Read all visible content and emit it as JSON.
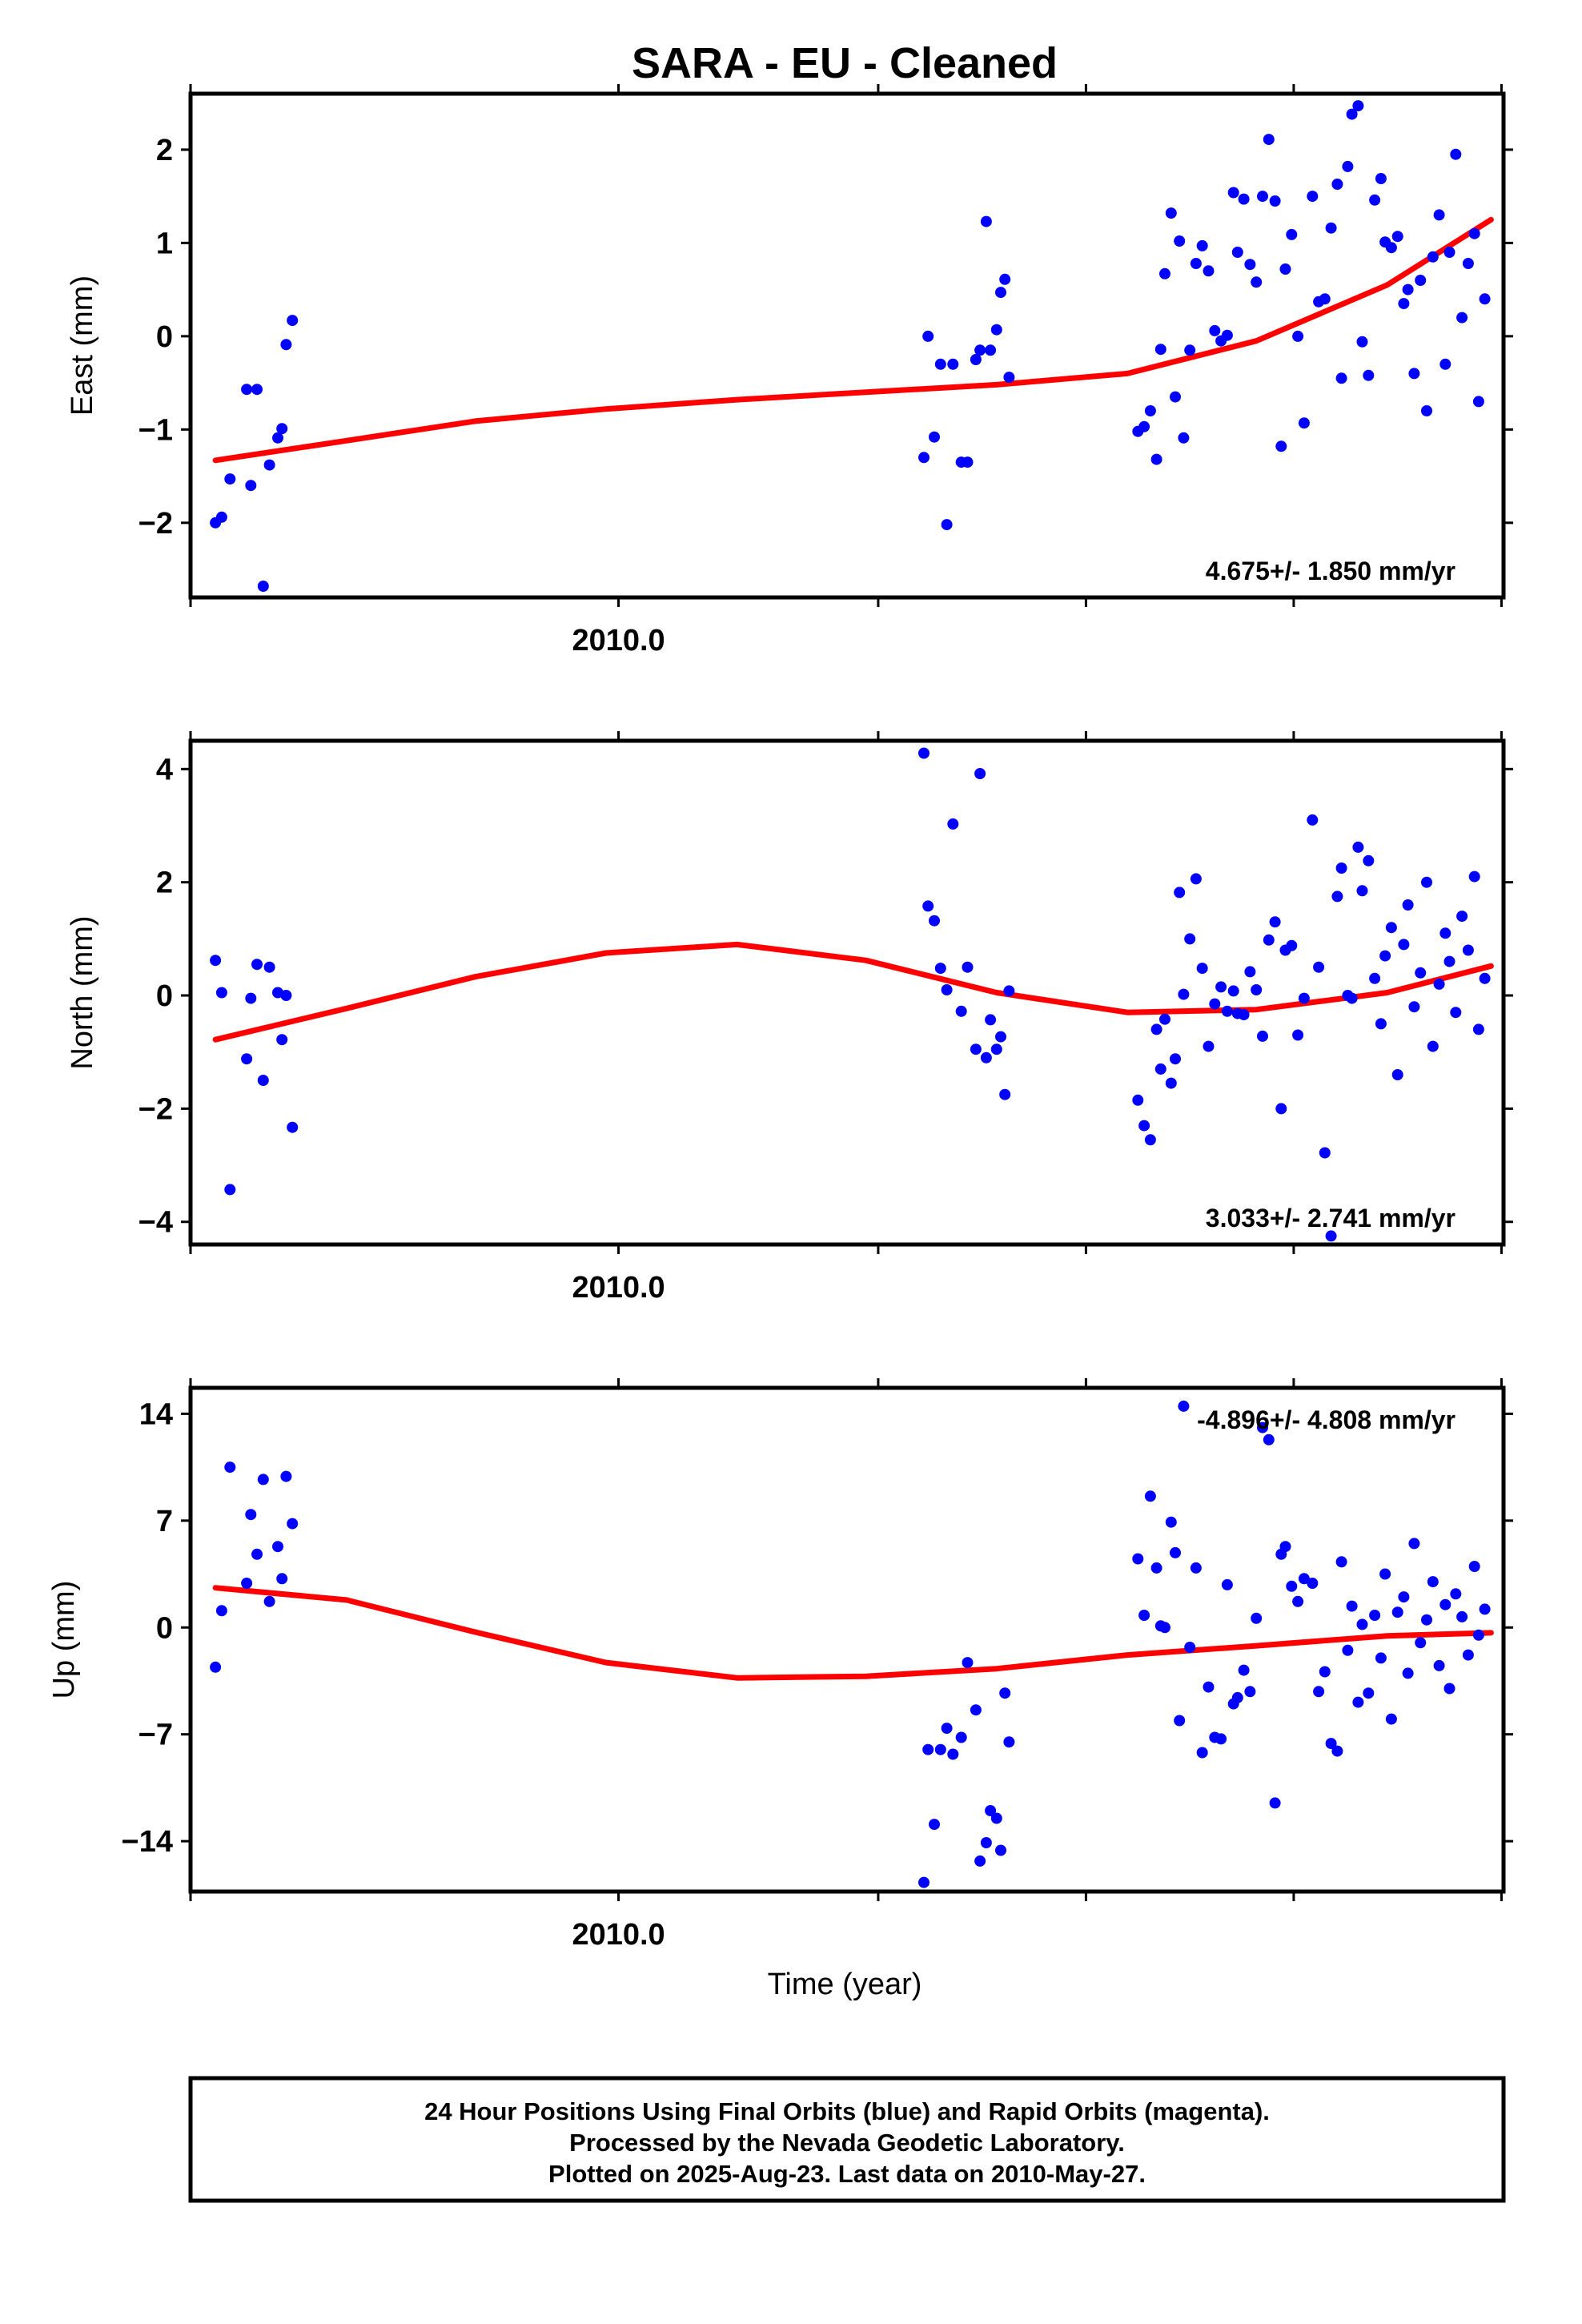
{
  "title": "SARA  - EU - Cleaned",
  "xlabel": "Time (year)",
  "footer": [
    "24 Hour Positions Using Final Orbits (blue) and Rapid Orbits (magenta).",
    "Processed by the Nevada Geodetic Laboratory.",
    "Plotted on 2025-Aug-23. Last data on 2010-May-27."
  ],
  "colors": {
    "points": "#0000ff",
    "fit": "#ff0000",
    "frame": "#000000"
  },
  "chart_data": [
    {
      "type": "scatter",
      "ylabel": "East (mm)",
      "x_tick_label": "2010.0",
      "x_tick_label_value": 2010.0,
      "xlim": [
        2009.794,
        2010.426
      ],
      "ylim": [
        -2.8,
        2.6
      ],
      "yticks": [
        -2,
        -1,
        0,
        1,
        2
      ],
      "yticklabels": [
        "−2",
        "−1",
        "0",
        "1",
        "2"
      ],
      "rate": "4.675+/- 1.850 mm/yr",
      "rate_position": "bottom-right",
      "fit_line": {
        "x": [
          2009.806,
          2009.869,
          2009.931,
          2009.994,
          2010.057,
          2010.119,
          2010.182,
          2010.245,
          2010.307,
          2010.37,
          2010.42
        ],
        "y": [
          -1.33,
          -1.12,
          -0.91,
          -0.78,
          -0.68,
          -0.6,
          -0.52,
          -0.4,
          -0.05,
          0.55,
          1.25
        ]
      },
      "points": {
        "x": [
          2009.806,
          2009.809,
          2009.813,
          2009.821,
          2009.823,
          2009.826,
          2009.829,
          2009.832,
          2009.836,
          2009.838,
          2009.84,
          2009.843,
          2010.147,
          2010.149,
          2010.152,
          2010.155,
          2010.158,
          2010.161,
          2010.165,
          2010.168,
          2010.172,
          2010.174,
          2010.177,
          2010.179,
          2010.182,
          2010.184,
          2010.186,
          2010.188,
          2010.25,
          2010.253,
          2010.256,
          2010.259,
          2010.261,
          2010.263,
          2010.266,
          2010.268,
          2010.27,
          2010.272,
          2010.275,
          2010.278,
          2010.281,
          2010.284,
          2010.287,
          2010.29,
          2010.293,
          2010.296,
          2010.298,
          2010.301,
          2010.304,
          2010.307,
          2010.31,
          2010.313,
          2010.316,
          2010.319,
          2010.321,
          2010.324,
          2010.327,
          2010.33,
          2010.334,
          2010.337,
          2010.34,
          2010.343,
          2010.346,
          2010.348,
          2010.351,
          2010.353,
          2010.356,
          2010.358,
          2010.361,
          2010.364,
          2010.367,
          2010.369,
          2010.372,
          2010.375,
          2010.378,
          2010.38,
          2010.383,
          2010.386,
          2010.389,
          2010.392,
          2010.395,
          2010.398,
          2010.4,
          2010.403,
          2010.406,
          2010.409,
          2010.412,
          2010.414,
          2010.417
        ],
        "y": [
          -2.0,
          -1.94,
          -1.53,
          -0.57,
          -1.6,
          -0.57,
          -2.68,
          -1.38,
          -1.09,
          -0.99,
          -0.09,
          0.17,
          -1.3,
          0.0,
          -1.08,
          -0.3,
          -2.02,
          -0.3,
          -1.35,
          -1.35,
          -0.25,
          -0.15,
          1.23,
          -0.15,
          0.07,
          0.47,
          0.61,
          -0.44,
          -1.02,
          -0.97,
          -0.8,
          -1.32,
          -0.14,
          0.67,
          1.32,
          -0.65,
          1.02,
          -1.09,
          -0.15,
          0.78,
          0.97,
          0.7,
          0.06,
          -0.05,
          0.01,
          1.54,
          0.9,
          1.47,
          0.77,
          0.58,
          1.5,
          2.11,
          1.45,
          -1.18,
          0.72,
          1.09,
          0.0,
          -0.93,
          1.5,
          0.37,
          0.4,
          1.16,
          1.63,
          -0.45,
          1.82,
          2.38,
          2.47,
          -0.06,
          -0.42,
          1.46,
          1.69,
          1.01,
          0.95,
          1.07,
          0.35,
          0.5,
          -0.4,
          0.6,
          -0.8,
          0.85,
          1.3,
          -0.3,
          0.9,
          1.95,
          0.2,
          0.78,
          1.1,
          -0.7,
          0.4
        ]
      }
    },
    {
      "type": "scatter",
      "ylabel": "North (mm)",
      "x_tick_label": "2010.0",
      "x_tick_label_value": 2010.0,
      "xlim": [
        2009.794,
        2010.426
      ],
      "ylim": [
        -4.4,
        4.5
      ],
      "yticks": [
        -4,
        -2,
        0,
        2,
        4
      ],
      "yticklabels": [
        "−4",
        "−2",
        "0",
        "2",
        "4"
      ],
      "rate": "3.033+/- 2.741 mm/yr",
      "rate_position": "bottom-right",
      "fit_line": {
        "x": [
          2009.806,
          2009.869,
          2009.931,
          2009.994,
          2010.057,
          2010.119,
          2010.182,
          2010.245,
          2010.307,
          2010.37,
          2010.42
        ],
        "y": [
          -0.78,
          -0.23,
          0.33,
          0.75,
          0.9,
          0.62,
          0.05,
          -0.3,
          -0.25,
          0.05,
          0.52
        ]
      },
      "points": {
        "x": [
          2009.806,
          2009.809,
          2009.813,
          2009.821,
          2009.823,
          2009.826,
          2009.829,
          2009.832,
          2009.836,
          2009.838,
          2009.84,
          2009.843,
          2010.147,
          2010.149,
          2010.152,
          2010.155,
          2010.158,
          2010.161,
          2010.165,
          2010.168,
          2010.172,
          2010.174,
          2010.177,
          2010.179,
          2010.182,
          2010.184,
          2010.186,
          2010.188,
          2010.25,
          2010.253,
          2010.256,
          2010.259,
          2010.261,
          2010.263,
          2010.266,
          2010.268,
          2010.27,
          2010.272,
          2010.275,
          2010.278,
          2010.281,
          2010.284,
          2010.287,
          2010.29,
          2010.293,
          2010.296,
          2010.298,
          2010.301,
          2010.304,
          2010.307,
          2010.31,
          2010.313,
          2010.316,
          2010.319,
          2010.321,
          2010.324,
          2010.327,
          2010.33,
          2010.334,
          2010.337,
          2010.34,
          2010.343,
          2010.346,
          2010.348,
          2010.351,
          2010.353,
          2010.356,
          2010.358,
          2010.361,
          2010.364,
          2010.367,
          2010.369,
          2010.372,
          2010.375,
          2010.378,
          2010.38,
          2010.383,
          2010.386,
          2010.389,
          2010.392,
          2010.395,
          2010.398,
          2010.4,
          2010.403,
          2010.406,
          2010.409,
          2010.412,
          2010.414,
          2010.417
        ],
        "y": [
          0.62,
          0.05,
          -3.43,
          -1.12,
          -0.05,
          0.55,
          -1.5,
          0.5,
          0.05,
          -0.78,
          0.0,
          -2.33,
          4.28,
          1.58,
          1.32,
          0.48,
          0.1,
          3.03,
          -0.28,
          0.5,
          -0.95,
          3.92,
          -1.1,
          -0.43,
          -0.95,
          -0.73,
          -1.75,
          0.08,
          -1.85,
          -2.3,
          -2.55,
          -0.6,
          -1.3,
          -0.42,
          -1.55,
          -1.12,
          1.82,
          0.02,
          1.0,
          2.06,
          0.48,
          -0.9,
          -0.15,
          0.15,
          -0.28,
          0.08,
          -0.32,
          -0.34,
          0.42,
          0.1,
          -0.72,
          0.98,
          1.3,
          -2.0,
          0.8,
          0.88,
          -0.7,
          -0.05,
          3.1,
          0.5,
          -2.78,
          -4.25,
          1.75,
          2.25,
          0.0,
          -0.05,
          2.62,
          1.85,
          2.38,
          0.3,
          -0.5,
          0.7,
          1.2,
          -1.4,
          0.9,
          1.6,
          -0.2,
          0.4,
          2.0,
          -0.9,
          0.2,
          1.1,
          0.6,
          -0.3,
          1.4,
          0.8,
          2.1,
          -0.6,
          0.3
        ]
      }
    },
    {
      "type": "scatter",
      "ylabel": "Up (mm)",
      "x_tick_label": "2010.0",
      "x_tick_label_value": 2010.0,
      "xlim": [
        2009.794,
        2010.426
      ],
      "ylim": [
        -17.3,
        15.7
      ],
      "yticks": [
        -14,
        -7,
        0,
        7,
        14
      ],
      "yticklabels": [
        "−14",
        "−7",
        "0",
        "7",
        "14"
      ],
      "rate": "-4.896+/- 4.808 mm/yr",
      "rate_position": "top-right",
      "fit_line": {
        "x": [
          2009.806,
          2009.869,
          2009.931,
          2009.994,
          2010.057,
          2010.119,
          2010.182,
          2010.245,
          2010.307,
          2010.37,
          2010.42
        ],
        "y": [
          2.6,
          1.8,
          -0.3,
          -2.3,
          -3.3,
          -3.2,
          -2.7,
          -1.8,
          -1.2,
          -0.55,
          -0.35
        ]
      },
      "points": {
        "x": [
          2009.806,
          2009.809,
          2009.813,
          2009.821,
          2009.823,
          2009.826,
          2009.829,
          2009.832,
          2009.836,
          2009.838,
          2009.84,
          2009.843,
          2010.147,
          2010.149,
          2010.152,
          2010.155,
          2010.158,
          2010.161,
          2010.165,
          2010.168,
          2010.172,
          2010.174,
          2010.177,
          2010.179,
          2010.182,
          2010.184,
          2010.186,
          2010.188,
          2010.25,
          2010.253,
          2010.256,
          2010.259,
          2010.261,
          2010.263,
          2010.266,
          2010.268,
          2010.27,
          2010.272,
          2010.275,
          2010.278,
          2010.281,
          2010.284,
          2010.287,
          2010.29,
          2010.293,
          2010.296,
          2010.298,
          2010.301,
          2010.304,
          2010.307,
          2010.31,
          2010.313,
          2010.316,
          2010.319,
          2010.321,
          2010.324,
          2010.327,
          2010.33,
          2010.334,
          2010.337,
          2010.34,
          2010.343,
          2010.346,
          2010.348,
          2010.351,
          2010.353,
          2010.356,
          2010.358,
          2010.361,
          2010.364,
          2010.367,
          2010.369,
          2010.372,
          2010.375,
          2010.378,
          2010.38,
          2010.383,
          2010.386,
          2010.389,
          2010.392,
          2010.395,
          2010.398,
          2010.4,
          2010.403,
          2010.406,
          2010.409,
          2010.412,
          2010.414,
          2010.417
        ],
        "y": [
          -2.6,
          1.1,
          10.5,
          2.9,
          7.4,
          4.8,
          9.7,
          1.7,
          5.3,
          3.2,
          9.9,
          6.8,
          -16.7,
          -8.0,
          -12.9,
          -8.0,
          -6.6,
          -8.3,
          -7.2,
          -2.3,
          -5.4,
          -15.3,
          -14.1,
          -12.0,
          -12.5,
          -14.6,
          -4.3,
          -7.5,
          4.5,
          0.8,
          8.6,
          3.9,
          0.1,
          0.0,
          6.9,
          4.9,
          -6.1,
          14.5,
          -1.3,
          3.9,
          -8.2,
          -3.9,
          -7.2,
          -7.3,
          2.8,
          -5.0,
          -4.6,
          -2.8,
          -4.2,
          0.6,
          13.1,
          12.3,
          -11.5,
          4.8,
          5.3,
          2.7,
          1.7,
          3.2,
          2.9,
          -4.2,
          -2.9,
          -7.6,
          -8.1,
          4.3,
          -1.5,
          1.4,
          -4.9,
          0.2,
          -4.3,
          0.8,
          -2.0,
          3.5,
          -6.0,
          1.0,
          2.0,
          -3.0,
          5.5,
          -1.0,
          0.5,
          3.0,
          -2.5,
          1.5,
          -4.0,
          2.2,
          0.7,
          -1.8,
          4.0,
          -0.5,
          1.2
        ]
      }
    }
  ]
}
